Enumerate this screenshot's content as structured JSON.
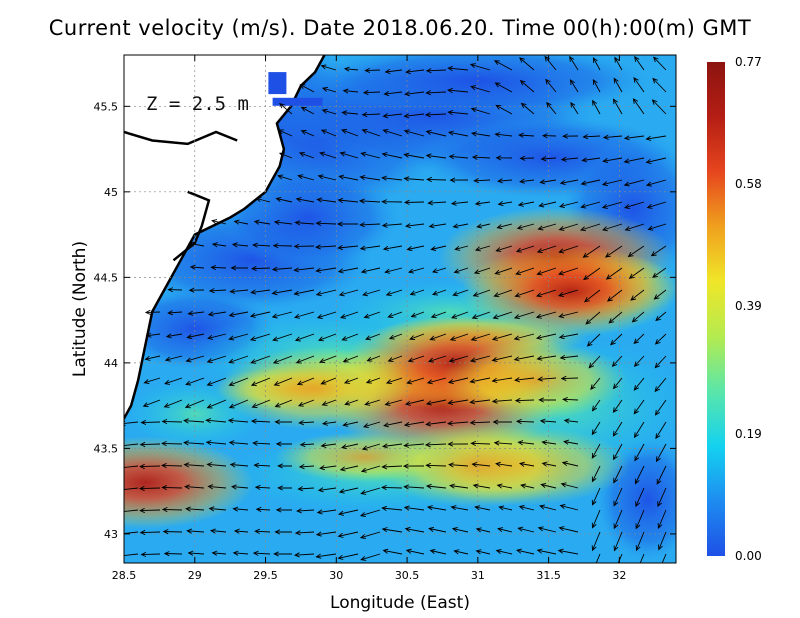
{
  "chart_data": {
    "type": "heatmap",
    "title": "Current velocity (m/s). Date 2018.06.20. Time 00(h):00(m) GMT",
    "annotation": "Z = 2.5 m",
    "xlabel": "Longitude (East)",
    "ylabel": "Latitude (North)",
    "xlim": [
      28.5,
      32.4
    ],
    "ylim": [
      42.83,
      45.8
    ],
    "x_ticks": [
      "28.5",
      "29",
      "29.5",
      "30",
      "30.5",
      "31",
      "31.5",
      "32"
    ],
    "x_tick_values": [
      28.5,
      29,
      29.5,
      30,
      30.5,
      31,
      31.5,
      32
    ],
    "y_ticks": [
      "43",
      "43.5",
      "44",
      "44.5",
      "45",
      "45.5"
    ],
    "y_tick_values": [
      43,
      43.5,
      44,
      44.5,
      45,
      45.5
    ],
    "grid": true,
    "grid_style": "dotted",
    "colorbar": {
      "min": 0.0,
      "max": 0.77,
      "tick_labels": [
        "0.77",
        "0.58",
        "0.39",
        "0.19",
        "0.00"
      ],
      "tick_values": [
        0.77,
        0.58,
        0.39,
        0.19,
        0.0
      ],
      "colors": [
        "#1e50e6",
        "#1e8cf0",
        "#14d2f0",
        "#5ae6aa",
        "#b4eb50",
        "#f0e628",
        "#f0a01e",
        "#e6461e",
        "#b41e14",
        "#8c1410"
      ]
    },
    "land_color": "#ffffff",
    "coastline_color": "#000000",
    "speed_hotspots": [
      {
        "lon": 30.75,
        "lat": 43.75,
        "speed": 0.7
      },
      {
        "lon": 30.85,
        "lat": 44.0,
        "speed": 0.66
      },
      {
        "lon": 31.55,
        "lat": 44.62,
        "speed": 0.72
      },
      {
        "lon": 31.65,
        "lat": 44.42,
        "speed": 0.62
      },
      {
        "lon": 29.85,
        "lat": 43.85,
        "speed": 0.5
      },
      {
        "lon": 31.0,
        "lat": 43.4,
        "speed": 0.52
      },
      {
        "lon": 28.65,
        "lat": 43.3,
        "speed": 0.62
      },
      {
        "lon": 31.4,
        "lat": 43.9,
        "speed": 0.45
      }
    ],
    "vector_field": "arrows show current direction; predominantly westward/south-westward flow"
  }
}
